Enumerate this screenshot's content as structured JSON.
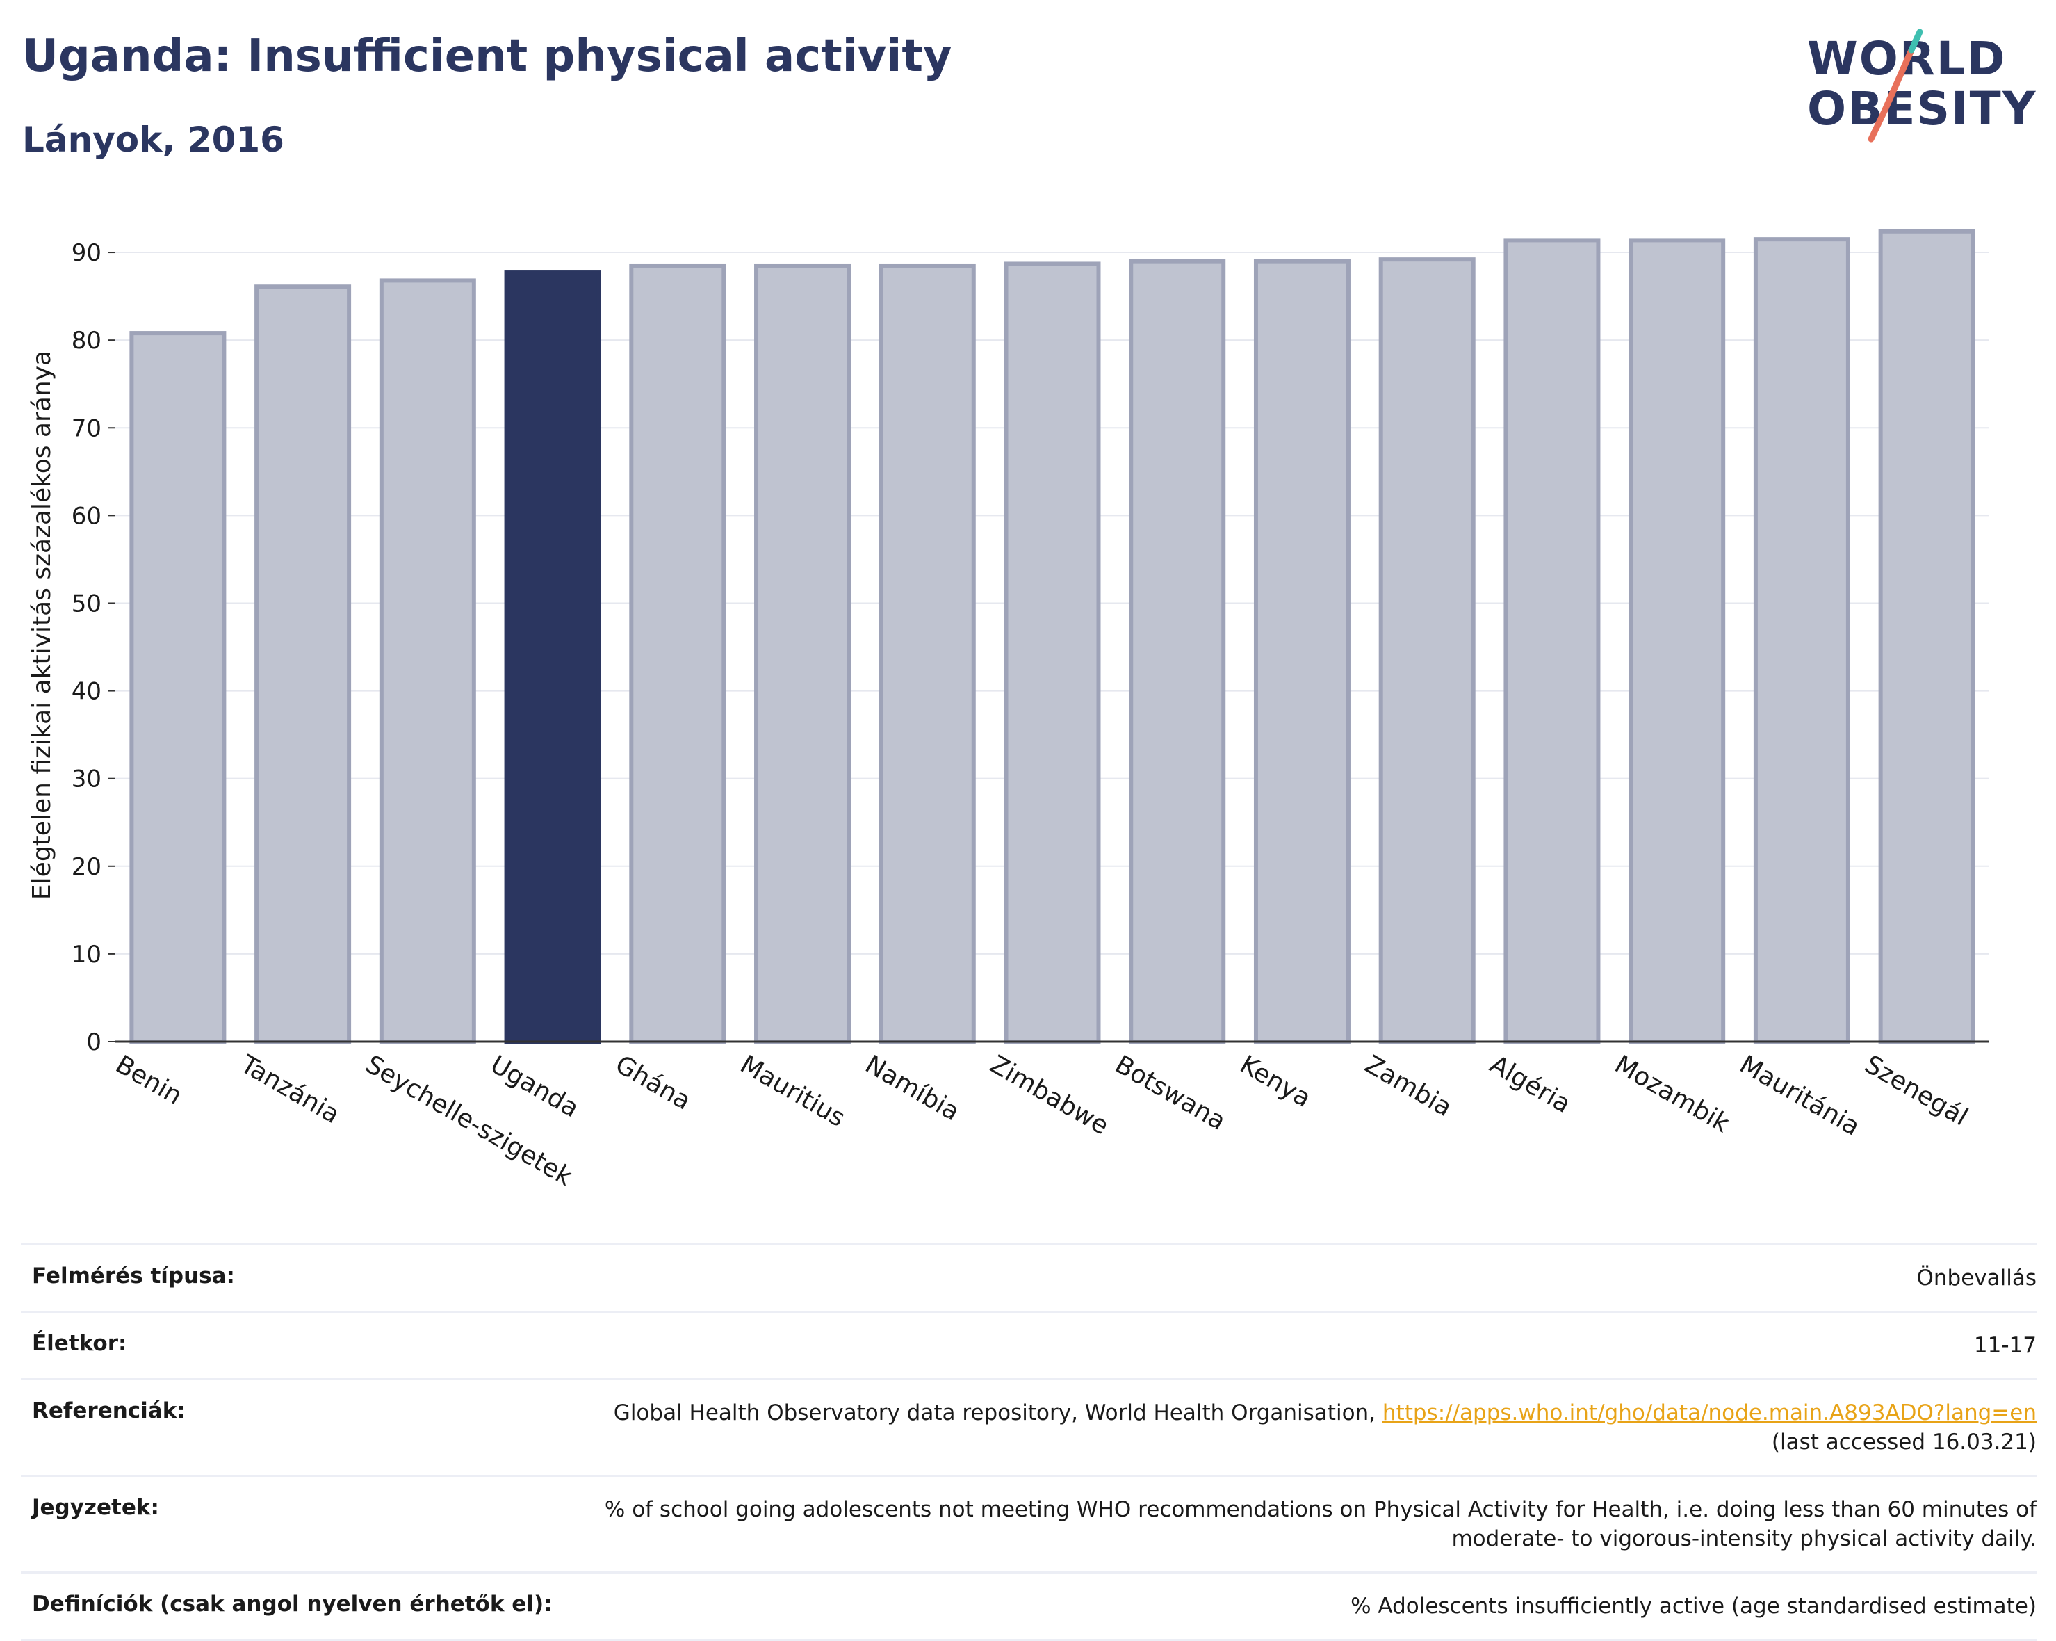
{
  "header": {
    "title": "Uganda: Insufficient physical activity",
    "subtitle": "Lányok, 2016"
  },
  "logo": {
    "line1": "WORLD",
    "line2": "OBESITY"
  },
  "chart_data": {
    "type": "bar",
    "categories": [
      "Benin",
      "Tanzánia",
      "Seychelle-szigetek",
      "Uganda",
      "Ghána",
      "Mauritius",
      "Namíbia",
      "Zimbabwe",
      "Botswana",
      "Kenya",
      "Zambia",
      "Algéria",
      "Mozambik",
      "Mauritánia",
      "Szenegál"
    ],
    "values": [
      80.8,
      86.1,
      86.8,
      87.7,
      88.5,
      88.5,
      88.5,
      88.7,
      89.0,
      89.0,
      89.2,
      91.4,
      91.4,
      91.5,
      92.4
    ],
    "highlight": "Uganda",
    "ylabel": "Elégtelen fizikai aktivitás százalékos aránya",
    "xlabel": "",
    "ylim": [
      0,
      95
    ],
    "yticks": [
      0,
      10,
      20,
      30,
      40,
      50,
      60,
      70,
      80,
      90
    ],
    "grid": true,
    "colors": {
      "bar": "#bfc3d0",
      "bar_edge": "#9ea3b8",
      "highlight": "#2b3660",
      "grid": "#e6e8ef",
      "axis": "#333333"
    }
  },
  "info": {
    "survey_label": "Felmérés típusa:",
    "survey_value": "Önbevallás",
    "age_label": "Életkor:",
    "age_value": "11-17",
    "ref_label": "Referenciák:",
    "ref_text": "Global Health Observatory data repository, World Health Organisation, ",
    "ref_link": "https://apps.who.int/gho/data/node.main.A893ADO?lang=en",
    "ref_accessed": "(last accessed 16.03.21)",
    "notes_label": "Jegyzetek:",
    "notes_value": "% of school going adolescents not meeting WHO recommendations on Physical Activity for Health, i.e. doing less than 60 minutes of moderate- to vigorous-intensity physical activity daily.",
    "def_label": "Definíciók (csak angol nyelven érhetők el):",
    "def_value": "% Adolescents insufficiently active (age standardised estimate)"
  }
}
